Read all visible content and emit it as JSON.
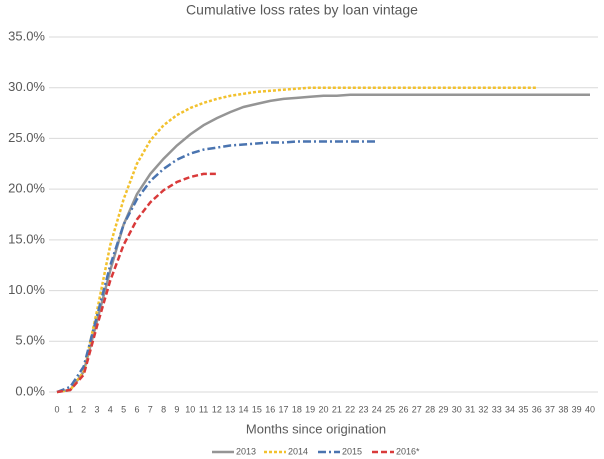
{
  "chart_data": {
    "type": "line",
    "title": "Cumulative loss rates by loan vintage",
    "x_label": "Months since origination",
    "x": [
      0,
      1,
      2,
      3,
      4,
      5,
      6,
      7,
      8,
      9,
      10,
      11,
      12,
      13,
      14,
      15,
      16,
      17,
      18,
      19,
      20,
      21,
      22,
      23,
      24,
      25,
      26,
      27,
      28,
      29,
      30,
      31,
      32,
      33,
      34,
      35,
      36,
      37,
      38,
      39,
      40
    ],
    "xlim": [
      0,
      40
    ],
    "xticks": [
      0,
      1,
      2,
      3,
      4,
      5,
      6,
      7,
      8,
      9,
      10,
      11,
      12,
      13,
      14,
      15,
      16,
      17,
      18,
      19,
      20,
      21,
      22,
      23,
      24,
      25,
      26,
      27,
      28,
      29,
      30,
      31,
      32,
      33,
      34,
      35,
      36,
      37,
      38,
      39,
      40
    ],
    "ylim": [
      0,
      35
    ],
    "yticks": [
      {
        "value": 0,
        "label": "0.0%"
      },
      {
        "value": 5,
        "label": "5.0%"
      },
      {
        "value": 10,
        "label": "10.0%"
      },
      {
        "value": 15,
        "label": "15.0%"
      },
      {
        "value": 20,
        "label": "20.0%"
      },
      {
        "value": 25,
        "label": "25.0%"
      },
      {
        "value": 30,
        "label": "30.0%"
      },
      {
        "value": 35,
        "label": "35.0%"
      }
    ],
    "grid": true,
    "legend": "bottom",
    "series": [
      {
        "name": "2013",
        "color": "#959595",
        "values": [
          0,
          0.2,
          2,
          7,
          12,
          16.5,
          19.5,
          21.5,
          23,
          24.3,
          25.4,
          26.3,
          27,
          27.6,
          28.1,
          28.4,
          28.7,
          28.9,
          29,
          29.1,
          29.2,
          29.2,
          29.3,
          29.3,
          29.3,
          29.3,
          29.3,
          29.3,
          29.3,
          29.3,
          29.3,
          29.3,
          29.3,
          29.3,
          29.3,
          29.3,
          29.3,
          29.3,
          29.3,
          29.3,
          29.3
        ]
      },
      {
        "name": "2014",
        "color": "#f2c12e",
        "values": [
          0,
          0.2,
          2,
          8,
          14.5,
          19,
          22.5,
          24.8,
          26.3,
          27.3,
          28,
          28.5,
          28.9,
          29.2,
          29.4,
          29.6,
          29.7,
          29.8,
          29.9,
          30,
          30,
          30,
          30,
          30,
          30,
          30,
          30,
          30,
          30,
          30,
          30,
          30,
          30,
          30,
          30,
          30,
          30,
          null,
          null,
          null,
          null
        ]
      },
      {
        "name": "2015",
        "color": "#4a74b0",
        "values": [
          0,
          0.5,
          2.5,
          7.5,
          12.5,
          16.5,
          19,
          20.8,
          22,
          22.9,
          23.5,
          23.9,
          24.1,
          24.3,
          24.4,
          24.5,
          24.6,
          24.6,
          24.7,
          24.7,
          24.7,
          24.7,
          24.7,
          24.7,
          24.7,
          null,
          null,
          null,
          null,
          null,
          null,
          null,
          null,
          null,
          null,
          null,
          null,
          null,
          null,
          null,
          null
        ]
      },
      {
        "name": "2016*",
        "color": "#d93a3a",
        "values": [
          0,
          0.2,
          1.7,
          6.5,
          11,
          14.5,
          17,
          18.7,
          19.9,
          20.7,
          21.2,
          21.5,
          21.5,
          null,
          null,
          null,
          null,
          null,
          null,
          null,
          null,
          null,
          null,
          null,
          null,
          null,
          null,
          null,
          null,
          null,
          null,
          null,
          null,
          null,
          null,
          null,
          null,
          null,
          null,
          null,
          null
        ]
      }
    ]
  }
}
